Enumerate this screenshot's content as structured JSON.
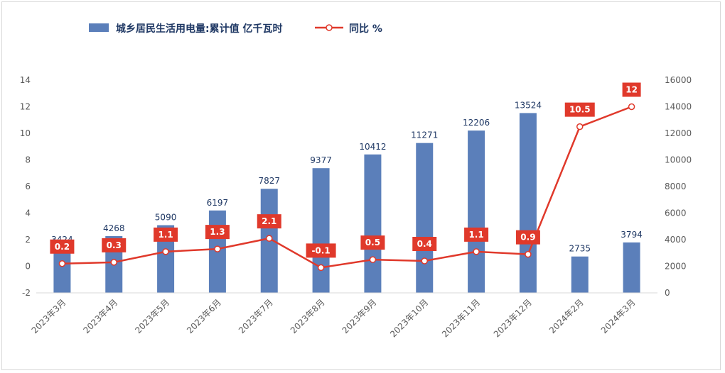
{
  "chart_data": {
    "type": "bar",
    "title": "",
    "categories": [
      "2023年3月",
      "2023年4月",
      "2023年5月",
      "2023年6月",
      "2023年7月",
      "2023年8月",
      "2023年9月",
      "2023年10月",
      "2023年11月",
      "2023年12月",
      "2024年2月",
      "2024年3月"
    ],
    "series": [
      {
        "name": "城乡居民生活用电量:累计值 亿千瓦时",
        "type": "bar",
        "axis": "right",
        "color": "#5b7fba",
        "values": [
          3424,
          4268,
          5090,
          6197,
          7827,
          9377,
          10412,
          11271,
          12206,
          13524,
          2735,
          3794
        ]
      },
      {
        "name": "同比 %",
        "type": "line",
        "axis": "left",
        "color": "#e0392b",
        "values": [
          0.2,
          0.3,
          1.1,
          1.3,
          2.1,
          -0.1,
          0.5,
          0.4,
          1.1,
          0.9,
          10.5,
          12
        ]
      }
    ],
    "y_left": {
      "min": -2,
      "max": 14,
      "step": 2,
      "ticks": [
        "-2",
        "0",
        "2",
        "4",
        "6",
        "8",
        "10",
        "12",
        "14"
      ]
    },
    "y_right": {
      "min": 0,
      "max": 16000,
      "step": 2000,
      "ticks": [
        "0",
        "2000",
        "4000",
        "6000",
        "8000",
        "10000",
        "12000",
        "14000",
        "16000"
      ]
    },
    "grid": false,
    "legend": "top-left"
  }
}
